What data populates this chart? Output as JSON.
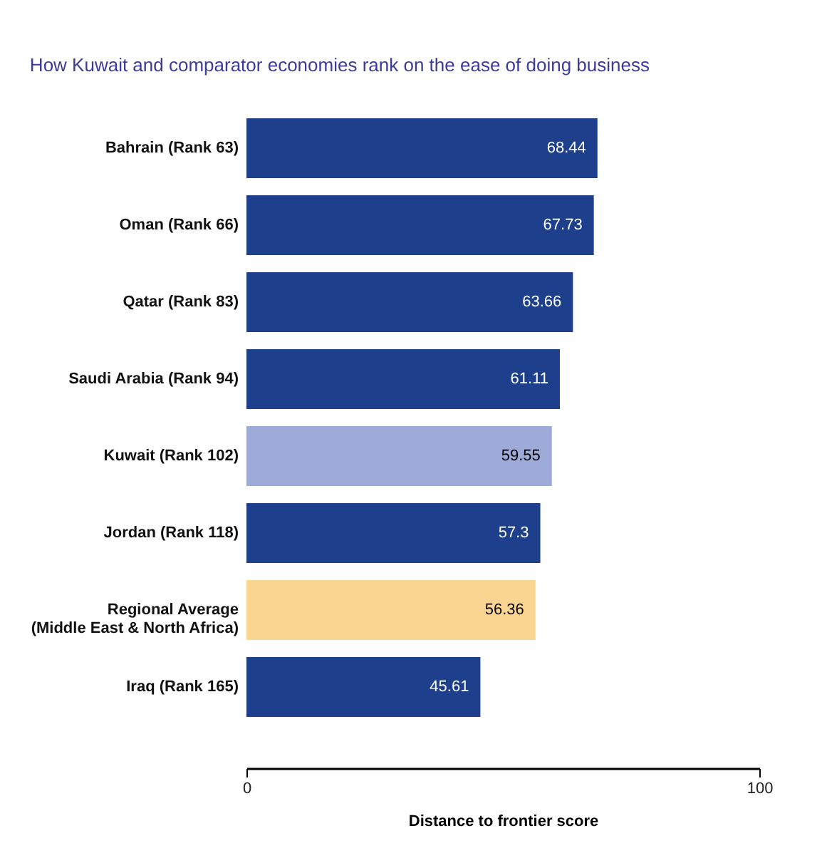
{
  "chart_data": {
    "type": "bar",
    "orientation": "horizontal",
    "title": "How Kuwait and comparator economies rank on the ease of doing business",
    "xlabel": "Distance to frontier score",
    "categories": [
      "Bahrain (Rank 63)",
      "Oman (Rank 66)",
      "Qatar (Rank 83)",
      "Saudi Arabia (Rank 94)",
      "Kuwait (Rank 102)",
      "Jordan (Rank 118)",
      "Regional Average\n(Middle East & North Africa)",
      "Iraq (Rank 165)"
    ],
    "values": [
      68.44,
      67.73,
      63.66,
      61.11,
      59.55,
      57.3,
      56.36,
      45.61
    ],
    "colors": [
      "#1e3f8c",
      "#1e3f8c",
      "#1e3f8c",
      "#1e3f8c",
      "#9eaad8",
      "#1e3f8c",
      "#fad491",
      "#1e3f8c"
    ],
    "xlim": [
      0,
      100
    ],
    "xticks": [
      0,
      100
    ],
    "data_labels": true
  }
}
